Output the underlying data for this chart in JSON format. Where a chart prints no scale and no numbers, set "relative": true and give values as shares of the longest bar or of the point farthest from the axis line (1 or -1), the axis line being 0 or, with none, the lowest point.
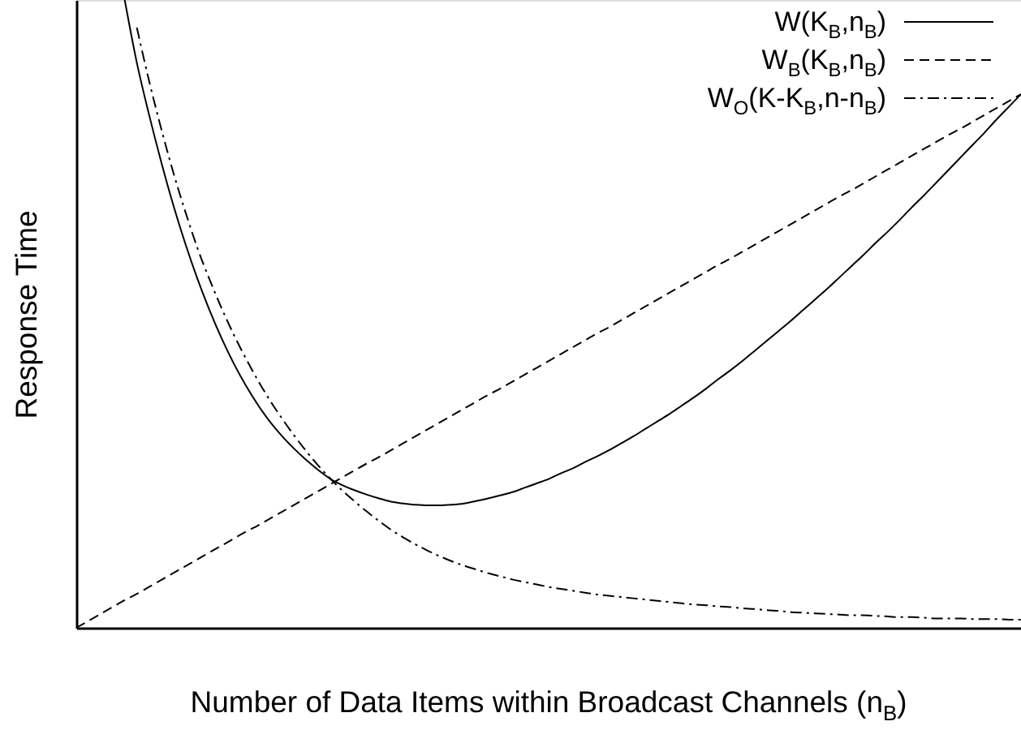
{
  "chart_data": {
    "type": "line",
    "relative": true,
    "tick_labels": false,
    "legend": "top right",
    "xlabel": "Number of Data Items within Broadcast Channels (n$_{B}$)",
    "ylabel": "Response Time",
    "categories": [
      null,
      null,
      null,
      null,
      null,
      null,
      null,
      null,
      null,
      null,
      null,
      null,
      null,
      null,
      null,
      null,
      null,
      null,
      null,
      null,
      null,
      null,
      null,
      null,
      null,
      null,
      null,
      null,
      null,
      null,
      null,
      null,
      null,
      null,
      null,
      null,
      null,
      null,
      null,
      null,
      null,
      null,
      null,
      null,
      null,
      null,
      null,
      null,
      null,
      null,
      null,
      null,
      null,
      null,
      null,
      null,
      null,
      null,
      null,
      null,
      null,
      null,
      null,
      null,
      null,
      null,
      null,
      null,
      null,
      null,
      null,
      null,
      null,
      null,
      null,
      null,
      null,
      null,
      null
    ],
    "series": [
      {
        "name": "W(K$_{B}$,n$_{B}$)",
        "color": "#000000",
        "line_style": "solid",
        "values": [
          null,
          null,
          null,
          null,
          1,
          0.9,
          0.818,
          0.743,
          0.674,
          0.612,
          0.556,
          0.506,
          0.461,
          0.421,
          0.386,
          0.355,
          0.328,
          0.305,
          0.285,
          0.267,
          0.251,
          0.237,
          0.227,
          0.219,
          0.212,
          0.206,
          0.201,
          0.198,
          0.196,
          0.195,
          0.195,
          0.196,
          0.198,
          0.202,
          0.206,
          0.211,
          0.216,
          0.223,
          0.23,
          0.237,
          0.246,
          0.254,
          0.264,
          0.273,
          0.283,
          0.294,
          0.305,
          0.317,
          0.329,
          0.341,
          0.354,
          0.367,
          0.381,
          0.396,
          0.41,
          0.425,
          0.441,
          0.457,
          0.473,
          0.489,
          0.506,
          0.523,
          0.54,
          0.558,
          0.576,
          0.594,
          0.613,
          0.631,
          0.65,
          0.67,
          0.689,
          0.709,
          0.729,
          0.749,
          0.769,
          0.789,
          0.81,
          0.83,
          0.85
        ]
      },
      {
        "name": "W$_{B}$(K$_{B}$,n$_{B}$)",
        "color": "#000000",
        "line_style": "dashed",
        "values": [
          0,
          0.011,
          0.022,
          0.033,
          0.044,
          0.054,
          0.065,
          0.076,
          0.087,
          0.098,
          0.109,
          0.12,
          0.131,
          0.142,
          0.153,
          0.163,
          0.174,
          0.185,
          0.196,
          0.207,
          0.218,
          0.229,
          0.24,
          0.251,
          0.262,
          0.272,
          0.283,
          0.294,
          0.305,
          0.316,
          0.327,
          0.338,
          0.349,
          0.36,
          0.371,
          0.381,
          0.392,
          0.403,
          0.414,
          0.425,
          0.436,
          0.447,
          0.458,
          0.469,
          0.479,
          0.49,
          0.501,
          0.512,
          0.523,
          0.534,
          0.545,
          0.556,
          0.567,
          0.578,
          0.588,
          0.599,
          0.61,
          0.621,
          0.632,
          0.643,
          0.654,
          0.665,
          0.676,
          0.687,
          0.697,
          0.708,
          0.719,
          0.73,
          0.741,
          0.752,
          0.763,
          0.774,
          0.785,
          0.795,
          0.806,
          0.817,
          0.828,
          0.839,
          0.85
        ]
      },
      {
        "name": "W$_{O}$(K-K$_{B}$,n-n$_{B}$)",
        "color": "#000000",
        "line_style": "dashdot",
        "values": [
          null,
          null,
          null,
          null,
          null,
          0.956,
          0.872,
          0.796,
          0.726,
          0.663,
          0.605,
          0.555,
          0.509,
          0.467,
          0.429,
          0.394,
          0.362,
          0.333,
          0.306,
          0.281,
          0.258,
          0.237,
          0.218,
          0.201,
          0.185,
          0.17,
          0.156,
          0.144,
          0.133,
          0.123,
          0.114,
          0.106,
          0.099,
          0.093,
          0.087,
          0.082,
          0.077,
          0.073,
          0.069,
          0.065,
          0.062,
          0.059,
          0.056,
          0.053,
          0.051,
          0.049,
          0.047,
          0.045,
          0.043,
          0.041,
          0.039,
          0.037,
          0.036,
          0.034,
          0.033,
          0.031,
          0.03,
          0.028,
          0.027,
          0.025,
          0.024,
          0.023,
          0.022,
          0.021,
          0.02,
          0.02,
          0.019,
          0.018,
          0.017,
          0.017,
          0.016,
          0.015,
          0.015,
          0.015,
          0.014,
          0.014,
          0.014,
          0.013,
          0.013
        ]
      }
    ]
  }
}
